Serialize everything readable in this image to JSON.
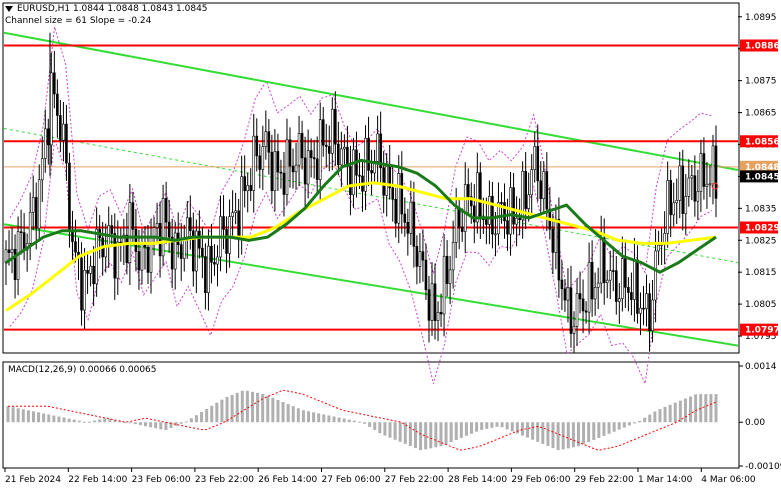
{
  "header": {
    "symbol_line": "EURUSD,H1  1.0844 1.0848 1.0843 1.0845",
    "channel_line": "Channel size = 61 Slope = -0.24"
  },
  "macd": {
    "label": "MACD(12,26,9) 0.00066 0.00065",
    "ticks": [
      "0.0014",
      "0.00",
      "-0.00109"
    ]
  },
  "price_axis": {
    "ticks": [
      "1.0895",
      "1.0885",
      "1.0875",
      "1.0865",
      "1.0855",
      "1.0845",
      "1.0835",
      "1.0825",
      "1.0815",
      "1.0805",
      "1.0795"
    ],
    "levels": [
      {
        "value": 1.0886,
        "label": "1.0886",
        "color": "#ff0000"
      },
      {
        "value": 1.0856,
        "label": "1.0856",
        "color": "#ff0000"
      },
      {
        "value": 1.0829,
        "label": "1.0829",
        "color": "#ff0000"
      },
      {
        "value": 1.0797,
        "label": "1.0797",
        "color": "#ff0000"
      }
    ],
    "markers": [
      {
        "value": 1.0848,
        "label": "1.0848",
        "color": "#e8a060"
      },
      {
        "value": 1.0845,
        "label": "1.0845",
        "color": "#000000"
      }
    ]
  },
  "time_axis": {
    "labels": [
      "21 Feb 2024",
      "22 Feb 14:00",
      "23 Feb 06:00",
      "23 Feb 22:00",
      "26 Feb 14:00",
      "27 Feb 06:00",
      "27 Feb 22:00",
      "28 Feb 14:00",
      "29 Feb 06:00",
      "29 Feb 22:00",
      "1 Mar 14:00",
      "4 Mar 06:00"
    ]
  },
  "colors": {
    "channel": "#33dd33",
    "ma_fast": "#1a7a1a",
    "ma_slow": "#ffff00",
    "candles": "#000000",
    "macd_hist": "#b0b0b0",
    "macd_signal": "#ff0000",
    "envelope": "#cc44cc"
  },
  "chart_data": {
    "type": "candlestick",
    "symbol": "EURUSD",
    "timeframe": "H1",
    "ylim": [
      1.079,
      1.0899
    ],
    "last": {
      "open": 1.0844,
      "high": 1.0848,
      "low": 1.0843,
      "close": 1.0845
    },
    "close_path": [
      1.0818,
      1.0822,
      1.0828,
      1.0842,
      1.0872,
      1.086,
      1.082,
      1.081,
      1.0822,
      1.0826,
      1.082,
      1.083,
      1.0818,
      1.0825,
      1.0832,
      1.082,
      1.0828,
      1.0822,
      1.0815,
      1.0826,
      1.083,
      1.0838,
      1.085,
      1.0855,
      1.0845,
      1.0848,
      1.0852,
      1.0848,
      1.0855,
      1.0858,
      1.085,
      1.0845,
      1.0848,
      1.0852,
      1.084,
      1.0836,
      1.0828,
      1.0815,
      1.08,
      1.0812,
      1.083,
      1.0838,
      1.0836,
      1.083,
      1.0834,
      1.0832,
      1.0838,
      1.085,
      1.0835,
      1.0818,
      1.08,
      1.0805,
      1.081,
      1.0818,
      1.081,
      1.0812,
      1.0808,
      1.08,
      1.0825,
      1.0838,
      1.084,
      1.0842,
      1.0845,
      1.0845
    ],
    "ma_fast_path": [
      1.0818,
      1.0822,
      1.0826,
      1.0828,
      1.0828,
      1.0827,
      1.0826,
      1.0826,
      1.0826,
      1.0825,
      1.0826,
      1.0826,
      1.0826,
      1.0825,
      1.0826,
      1.083,
      1.0835,
      1.0842,
      1.0848,
      1.085,
      1.0849,
      1.0848,
      1.0846,
      1.0842,
      1.0836,
      1.0832,
      1.0832,
      1.0833,
      1.0832,
      1.0834,
      1.0836,
      1.083,
      1.0825,
      1.082,
      1.0818,
      1.0815,
      1.0818,
      1.0822,
      1.0826
    ],
    "ma_slow_path": [
      1.0803,
      1.0808,
      1.0814,
      1.082,
      1.0823,
      1.0824,
      1.0824,
      1.0825,
      1.0826,
      1.0826,
      1.0826,
      1.0829,
      1.0834,
      1.0838,
      1.0842,
      1.0843,
      1.0842,
      1.084,
      1.0838,
      1.0838,
      1.0836,
      1.0834,
      1.0832,
      1.083,
      1.0828,
      1.0825,
      1.0824,
      1.0824,
      1.0825,
      1.0826
    ],
    "channel_lines": [
      {
        "name": "upper",
        "from": 1.089,
        "to": 1.0847
      },
      {
        "name": "lower",
        "from": 1.083,
        "to": 1.0792
      },
      {
        "name": "middle",
        "from": 1.086,
        "to": 1.0818
      }
    ],
    "macd_values": [
      0.0004,
      0.0003,
      0.0002,
      0.0001,
      0.0,
      0.0001,
      0.0,
      -0.0001,
      -0.0002,
      0.0,
      0.0003,
      0.0006,
      0.0008,
      0.0007,
      0.0005,
      0.0003,
      0.0002,
      0.0001,
      0.0,
      -0.0003,
      -0.0005,
      -0.0007,
      -0.0006,
      -0.0004,
      -0.0002,
      -0.0001,
      -0.0003,
      -0.0005,
      -0.0007,
      -0.0006,
      -0.0004,
      -0.0002,
      0.0,
      0.0003,
      0.0005,
      0.0007,
      0.0007
    ]
  }
}
